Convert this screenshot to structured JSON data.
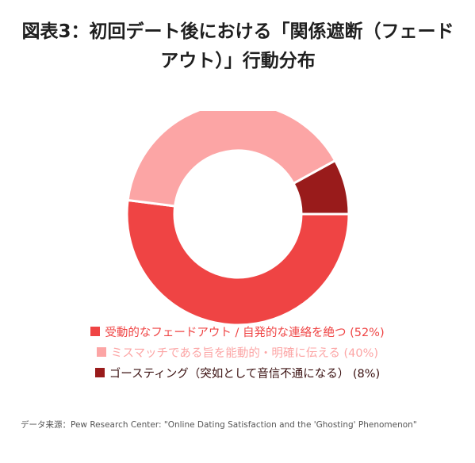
{
  "title": "図表3：初回デート後における「関係遮断（フェードアウト）」行動分布",
  "colors": {
    "passive": "#ef4444",
    "clear": "#fca5a5",
    "ghosting": "#991b1b",
    "title": "#1f1f1f",
    "source": "#555555"
  },
  "chart_data": {
    "type": "pie",
    "style": "donut",
    "categories": [
      "受動的なフェードアウト / 自発的な連絡を絶つ",
      "ミスマッチである旨を能動的・明確に伝える",
      "ゴースティング（突如として音信不通になる）"
    ],
    "values": [
      52,
      40,
      8
    ],
    "unit": "%",
    "legend_position": "bottom",
    "legend": [
      {
        "label": "受動的なフェードアウト / 自発的な連絡を絶つ (52%)",
        "color": "#ef4444"
      },
      {
        "label": "ミスマッチである旨を能動的・明確に伝える (40%)",
        "color": "#fca5a5"
      },
      {
        "label": "ゴースティング（突如として音信不通になる） (8%)",
        "color": "#991b1b"
      }
    ]
  },
  "source": "データ来源：Pew Research Center: \"Online Dating Satisfaction and the 'Ghosting' Phenomenon\""
}
